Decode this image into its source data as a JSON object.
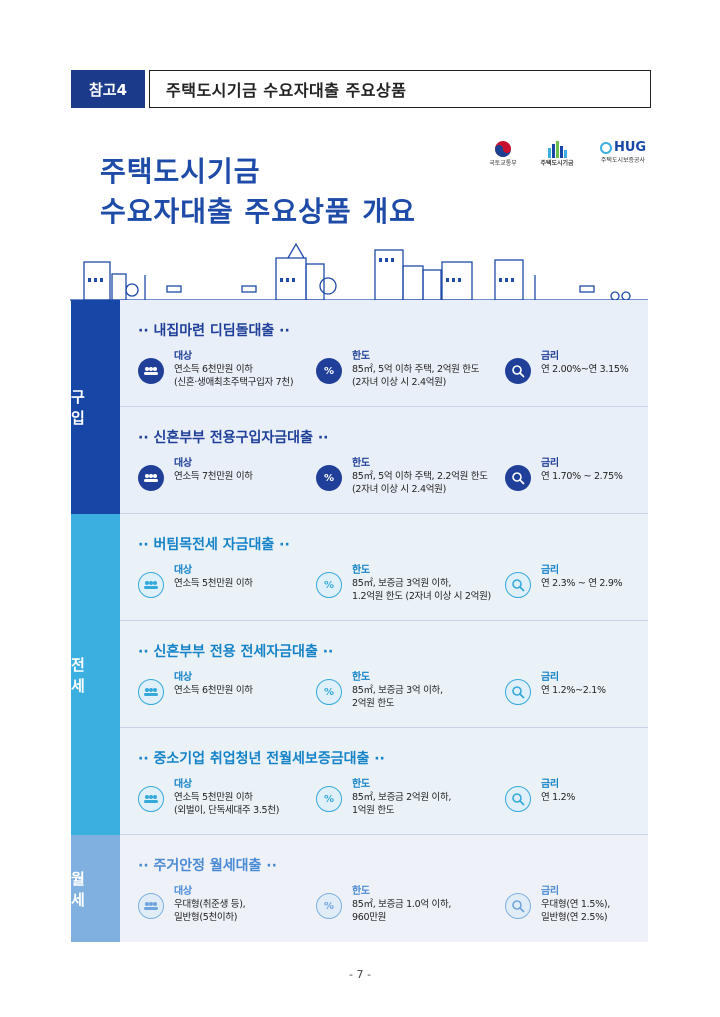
{
  "header": {
    "tag": "참고4",
    "title": "주택도시기금  수요자대출  주요상품"
  },
  "title": {
    "line1": "주택도시기금",
    "line2": "수요자대출 주요상품 개요"
  },
  "logos": [
    {
      "name": "국토교통부"
    },
    {
      "name": "주택도시기금"
    },
    {
      "name": "HUG",
      "sub": "주택도시보증공사"
    }
  ],
  "groups": [
    {
      "label": "구 입",
      "color": "#1747a6",
      "rows": [
        {
          "title": "·· 내집마련 디딤돌대출 ··",
          "target_label": "대상",
          "target": [
            "연소득 6천만원 이하",
            "(신혼·생애최초주택구입자 7천)"
          ],
          "limit_label": "한도",
          "limit": [
            "85㎡, 5억 이하 주택, 2억원 한도",
            "(2자녀 이상 시 2.4억원)"
          ],
          "rate_label": "금리",
          "rate": [
            "연 2.00%~연 3.15%"
          ]
        },
        {
          "title": "·· 신혼부부 전용구입자금대출 ··",
          "target_label": "대상",
          "target": [
            "연소득 7천만원 이하"
          ],
          "limit_label": "한도",
          "limit": [
            " 85㎡, 5억 이하 주택, 2.2억원 한도",
            "(2자녀 이상 시 2.4억원)"
          ],
          "rate_label": "금리",
          "rate": [
            "연 1.70% ~ 2.75%"
          ]
        }
      ]
    },
    {
      "label": "전 세",
      "color": "#3bb0e0",
      "rows": [
        {
          "title": "·· 버팀목전세 자금대출 ··",
          "target_label": "대상",
          "target": [
            "연소득 5천만원 이하"
          ],
          "limit_label": "한도",
          "limit": [
            "85㎡, 보증금 3억원 이하,",
            "1.2억원 한도 (2자녀 이상 시 2억원)"
          ],
          "rate_label": "금리",
          "rate": [
            "연 2.3% ~ 연 2.9%"
          ]
        },
        {
          "title": "·· 신혼부부 전용 전세자금대출 ··",
          "target_label": "대상",
          "target": [
            "연소득 6천만원 이하"
          ],
          "limit_label": "한도",
          "limit": [
            "85㎡, 보증금 3억 이하,",
            "2억원 한도"
          ],
          "rate_label": "금리",
          "rate": [
            "연 1.2%~2.1%"
          ]
        },
        {
          "title": "·· 중소기업 취업청년 전월세보증금대출 ··",
          "target_label": "대상",
          "target": [
            "연소득 5천만원 이하",
            "(외벌이, 단독세대주 3.5천)"
          ],
          "limit_label": "한도",
          "limit": [
            "85㎡, 보증금 2억원 이하,",
            "1억원 한도"
          ],
          "rate_label": "금리",
          "rate": [
            "연 1.2%"
          ]
        }
      ]
    },
    {
      "label": "월 세",
      "color": "#7fb0e0",
      "rows": [
        {
          "title": "·· 주거안정 월세대출 ··",
          "target_label": "대상",
          "target": [
            "우대형(취준생 등),",
            "일반형(5천이하)"
          ],
          "limit_label": "한도",
          "limit": [
            "85㎡, 보증금 1.0억 이하,",
            "960만원"
          ],
          "rate_label": "금리",
          "rate": [
            "우대형(연 1.5%),",
            "일반형(연 2.5%)"
          ]
        }
      ]
    }
  ],
  "page_number": "- 7 -"
}
